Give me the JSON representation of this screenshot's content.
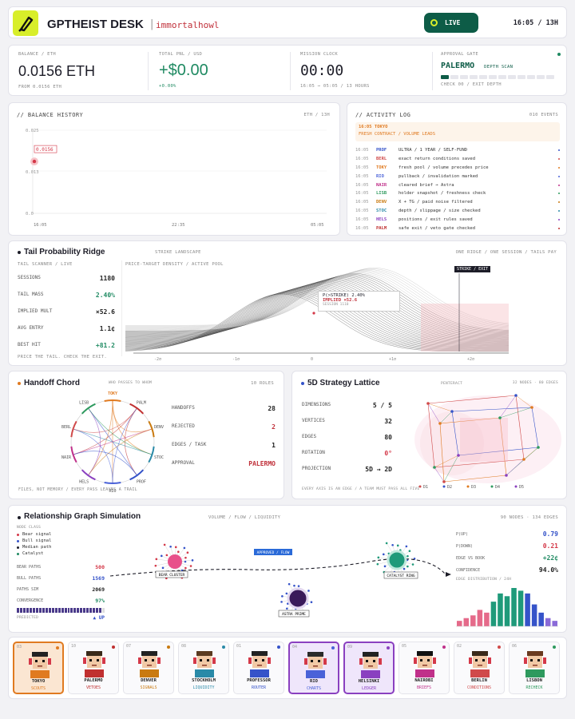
{
  "header": {
    "brand": "GPTHEIST DESK",
    "user": "immortalhowl",
    "live": "LIVE",
    "clock": "16:05 / 13H"
  },
  "stats": {
    "balance": {
      "label": "BALANCE / ETH",
      "value": "0.0156 ETH",
      "sub": "FROM 0.0156 ETH"
    },
    "pnl": {
      "label": "TOTAL PNL / USD",
      "value": "+$0.00",
      "sub": "+0.00%"
    },
    "mission": {
      "label": "MISSION CLOCK",
      "value": "00:00",
      "sub": "16:05 → 05:05 / 13 HOURS"
    },
    "gate": {
      "label": "APPROVAL GATE",
      "value": "PALERMO",
      "tag": "DEPTH SCAN",
      "sub": "CHECK 00 / EXIT DEPTH",
      "progress": 0.1
    }
  },
  "balance_history": {
    "title": "// BALANCE HISTORY",
    "meta": "ETH / 13H",
    "marker": "0.0156",
    "chart_data": {
      "type": "line",
      "y_ticks": [
        "0.025",
        "0.013",
        "0.0"
      ],
      "x_ticks": [
        "16:05",
        "22:35",
        "05:05"
      ],
      "ylim": [
        0,
        0.025
      ],
      "series": [
        {
          "x": [
            "16:05"
          ],
          "values": [
            0.0156
          ]
        }
      ]
    }
  },
  "activity": {
    "title": "// ACTIVITY LOG",
    "count": "010 EVENTS",
    "highlight": {
      "head": "16:05 TOKYO",
      "body": "FRESH CONTRACT / VOLUME LEADS"
    },
    "rows": [
      {
        "t": "16:05",
        "who": "PROF",
        "msg": "ULTRA / 1 YEAR / SELF-FUND",
        "c": "#3553c9"
      },
      {
        "t": "16:05",
        "who": "BERL",
        "msg": "exact return conditions saved",
        "c": "#d04a4a"
      },
      {
        "t": "16:05",
        "who": "TOKY",
        "msg": "fresh pool / volume precedes price",
        "c": "#e07a20"
      },
      {
        "t": "16:05",
        "who": "RIO",
        "msg": "pullback / invalidation marked",
        "c": "#4a62d8"
      },
      {
        "t": "16:05",
        "who": "NAIR",
        "msg": "cleared brief → Astra",
        "c": "#c0308a"
      },
      {
        "t": "16:05",
        "who": "LISB",
        "msg": "holder snapshot / freshness check",
        "c": "#2e9a5e"
      },
      {
        "t": "16:05",
        "who": "DENV",
        "msg": "X + TG / paid noise filtered",
        "c": "#c97a10"
      },
      {
        "t": "16:05",
        "who": "STOC",
        "msg": "depth / slippage / size checked",
        "c": "#2a8aa8"
      },
      {
        "t": "16:05",
        "who": "HELS",
        "msg": "positions / exit rules saved",
        "c": "#8a40c0"
      },
      {
        "t": "16:05",
        "who": "PALM",
        "msg": "safe exit / veto gate checked",
        "c": "#c03030"
      }
    ]
  },
  "ridge": {
    "title": "Tail Probability Ridge",
    "sub": "STRIKE LANDSCAPE",
    "right": "ONE RIDGE / ONE SESSION / TAILS PAY",
    "scanner": "TAIL SCANNER / LIVE",
    "kvs": [
      {
        "k": "SESSIONS",
        "v": "1180"
      },
      {
        "k": "TAIL MASS",
        "v": "2.40%"
      },
      {
        "k": "IMPLIED MULT",
        "v": "×52.6"
      },
      {
        "k": "AVG ENTRY",
        "v": "1.1¢"
      },
      {
        "k": "BEST HIT",
        "v": "+81.2"
      }
    ],
    "foot": "PRICE THE TAIL. CHECK THE EXIT.",
    "density": "PRICE-TARGET DENSITY / ACTIVE POOL",
    "strike": "STRIKE / EXIT",
    "tip": {
      "l1": "P(>STRIKE) 2.40%",
      "l2": "IMPLIED ×52.6",
      "l3": "SESSION 1110"
    },
    "xticks": [
      "-2σ",
      "-1σ",
      "0",
      "+1σ",
      "+2σ"
    ]
  },
  "chord": {
    "title": "Handoff Chord",
    "sub": "WHO PASSES TO WHOM",
    "meta": "10 ROLES",
    "nodes": [
      "TOKY",
      "PALM",
      "DENV",
      "STOC",
      "PROF",
      "RIO",
      "HELS",
      "NAIR",
      "BERL",
      "LISB"
    ],
    "kvs": [
      {
        "k": "HANDOFFS",
        "v": "28"
      },
      {
        "k": "REJECTED",
        "v": "2"
      },
      {
        "k": "EDGES / TASK",
        "v": "1"
      },
      {
        "k": "APPROVAL",
        "v": "PALERMO"
      }
    ],
    "foot": "FILES, NOT MEMORY / EVERY PASS LEAVES A TRAIL"
  },
  "lattice": {
    "title": "5D Strategy Lattice",
    "sub": "PENTERACT",
    "meta": "32 NODES · 80 EDGES",
    "kvs": [
      {
        "k": "DIMENSIONS",
        "v": "5 / 5"
      },
      {
        "k": "VERTICES",
        "v": "32"
      },
      {
        "k": "EDGES",
        "v": "80"
      },
      {
        "k": "ROTATION",
        "v": "0°"
      },
      {
        "k": "PROJECTION",
        "v": "5D → 2D"
      }
    ],
    "legend": [
      "D1",
      "D2",
      "D3",
      "D4",
      "D5"
    ],
    "foot": "EVERY AXIS IS AN EDGE / A TEAM MUST PASS ALL FIVE"
  },
  "graph": {
    "title": "Relationship Graph Simulation",
    "sub": "VOLUME / FLOW / LIQUIDITY",
    "meta": "90 NODES · 134 EDGES",
    "node_class": "NODE CLASS",
    "legend": [
      "Bear signal",
      "Bull signal",
      "Median path",
      "Catalyst"
    ],
    "kvs": [
      {
        "k": "BEAR PATHS",
        "v": "500"
      },
      {
        "k": "BULL PATHS",
        "v": "1569"
      },
      {
        "k": "PATHS SIM",
        "v": "2069"
      },
      {
        "k": "CONVERGENCE",
        "v": "97%"
      }
    ],
    "predicted": "PREDICTED",
    "up": "▲ UP",
    "convergence": 0.97,
    "labels": {
      "bear": "BEAR CLUSTER",
      "catalyst": "CATALYST RING",
      "astra": "ASTRA PRIME",
      "flow": "APPROVED / FLOW"
    },
    "right": [
      {
        "k": "P(UP)",
        "v": "0.79"
      },
      {
        "k": "P(DOWN)",
        "v": "0.21"
      },
      {
        "k": "EDGE VS BOOK",
        "v": "+22¢"
      },
      {
        "k": "CONFIDENCE",
        "v": "94.0%"
      }
    ],
    "dist_label": "EDGE DISTRIBUTION / 24H",
    "dist": [
      2,
      3,
      4,
      6,
      5,
      9,
      12,
      11,
      14,
      13,
      12,
      8,
      5,
      3,
      2
    ]
  },
  "agents": [
    {
      "idx": "03",
      "name": "TOKYO",
      "role": "SCOUTS",
      "color": "#e07a20",
      "hl": "orange"
    },
    {
      "idx": "10",
      "name": "PALERMO",
      "role": "VETOES",
      "color": "#c03030",
      "hl": ""
    },
    {
      "idx": "07",
      "name": "DENVER",
      "role": "SIGNALS",
      "color": "#c97a10",
      "hl": ""
    },
    {
      "idx": "08",
      "name": "STOCKHOLM",
      "role": "LIQUIDITY",
      "color": "#2a8aa8",
      "hl": ""
    },
    {
      "idx": "01",
      "name": "PROFESSOR",
      "role": "ROUTER",
      "color": "#3553c9",
      "hl": ""
    },
    {
      "idx": "04",
      "name": "RIO",
      "role": "CHARTS",
      "color": "#4a62d8",
      "hl": "purple"
    },
    {
      "idx": "09",
      "name": "HELSINKI",
      "role": "LEDGER",
      "color": "#8a40c0",
      "hl": "purple"
    },
    {
      "idx": "05",
      "name": "NAIROBI",
      "role": "BRIEFS",
      "color": "#c0308a",
      "hl": ""
    },
    {
      "idx": "02",
      "name": "BERLIN",
      "role": "CONDITIONS",
      "color": "#d04a4a",
      "hl": ""
    },
    {
      "idx": "06",
      "name": "LISBON",
      "role": "RECHECK",
      "color": "#2e9a5e",
      "hl": ""
    }
  ]
}
